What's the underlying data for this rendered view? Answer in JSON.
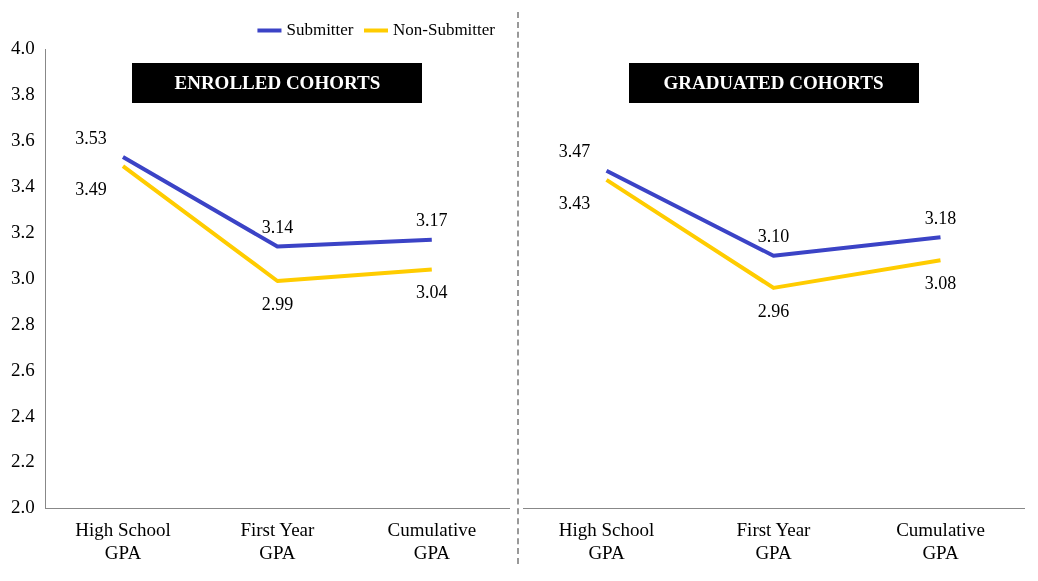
{
  "chart_data": [
    {
      "type": "line",
      "title": "ENROLLED COHORTS",
      "categories": [
        "High School GPA",
        "First Year GPA",
        "Cumulative GPA"
      ],
      "series": [
        {
          "name": "Submitter",
          "color": "#3b43c6",
          "values": [
            3.53,
            3.14,
            3.17
          ],
          "value_labels": [
            "3.53",
            "3.14",
            "3.17"
          ]
        },
        {
          "name": "Non-Submitter",
          "color": "#ffcc00",
          "values": [
            3.49,
            2.99,
            3.04
          ],
          "value_labels": [
            "3.49",
            "2.99",
            "3.04"
          ]
        }
      ],
      "ylim": [
        2,
        4
      ],
      "yticks": [
        {
          "value": 2,
          "label": "2.0"
        },
        {
          "value": 2.2,
          "label": "2.2"
        },
        {
          "value": 2.4,
          "label": "2.4"
        },
        {
          "value": 2.6,
          "label": "2.6"
        },
        {
          "value": 2.8,
          "label": "2.8"
        },
        {
          "value": 3,
          "label": "3.0"
        },
        {
          "value": 3.2,
          "label": "3.2"
        },
        {
          "value": 3.4,
          "label": "3.4"
        },
        {
          "value": 3.6,
          "label": "3.6"
        },
        {
          "value": 3.8,
          "label": "3.8"
        },
        {
          "value": 4,
          "label": "4.0"
        }
      ],
      "grid": false,
      "legend": "top right",
      "marker": "none",
      "line_style": "solid"
    },
    {
      "type": "line",
      "title": "GRADUATED COHORTS",
      "categories": [
        "High School GPA",
        "First Year GPA",
        "Cumulative GPA"
      ],
      "series": [
        {
          "color": "#3b43c6",
          "values": [
            3.47,
            3.1,
            3.18
          ],
          "value_labels": [
            "3.47",
            "3.10",
            "3.18"
          ]
        },
        {
          "color": "#ffcc00",
          "values": [
            3.43,
            2.96,
            3.08
          ],
          "value_labels": [
            "3.43",
            "2.96",
            "3.08"
          ]
        }
      ],
      "ylim": [
        2,
        4
      ],
      "tick_labels": "x",
      "grid": false,
      "marker": "none",
      "line_style": "solid"
    }
  ]
}
